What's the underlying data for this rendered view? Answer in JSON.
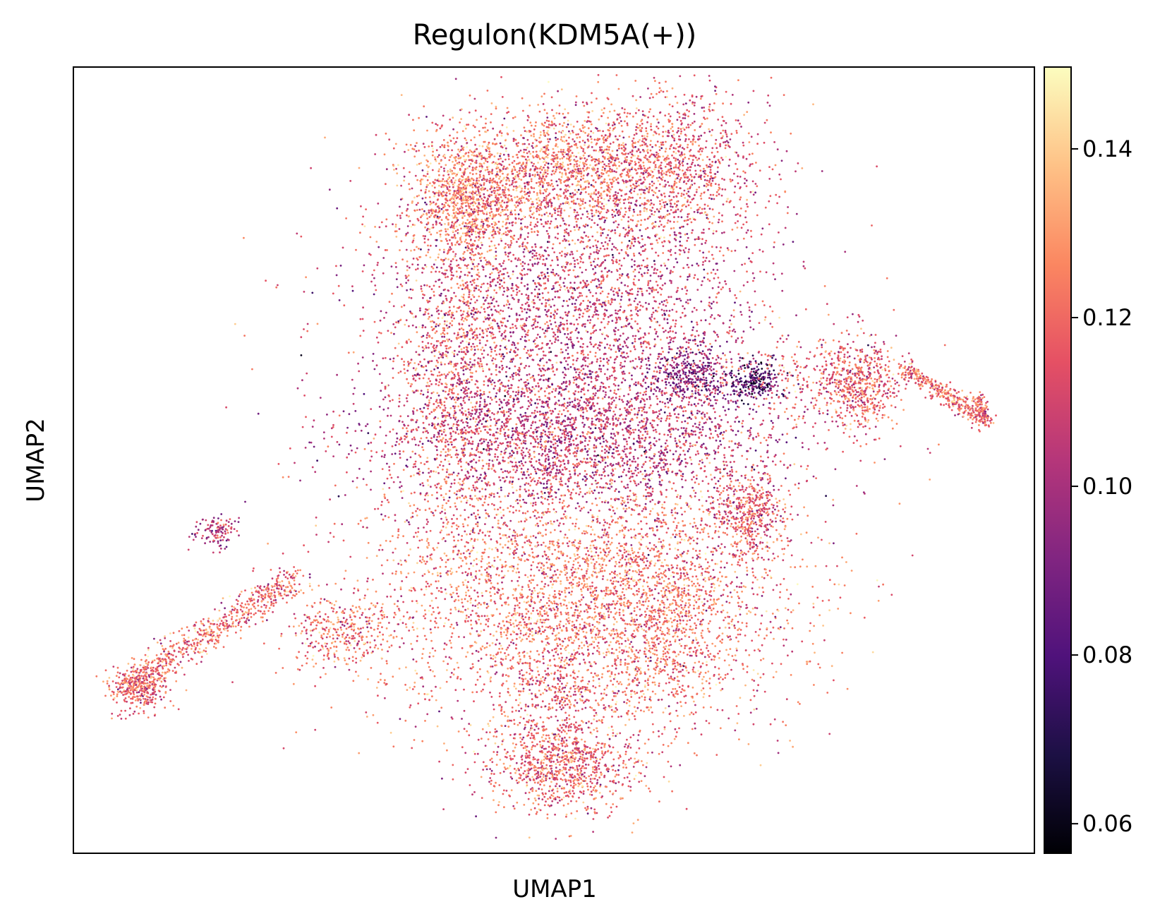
{
  "chart_data": {
    "type": "scatter",
    "title": "Regulon(KDM5A(+))",
    "xlabel": "UMAP1",
    "ylabel": "UMAP2",
    "x_ticks": [],
    "y_ticks": [],
    "grid": false,
    "point_size_note": "tiny markers, ~20000 cells",
    "colormap": {
      "name": "magma",
      "stops": [
        "#000004",
        "#1c1044",
        "#4f127b",
        "#812581",
        "#b5367a",
        "#e55064",
        "#fb8761",
        "#fec287",
        "#fcfdbf"
      ]
    },
    "colorbar": {
      "range": [
        0.0565,
        0.1497
      ],
      "ticks": [
        "0.06",
        "0.08",
        "0.10",
        "0.12",
        "0.14"
      ],
      "tick_values": [
        0.06,
        0.08,
        0.1,
        0.12,
        0.14
      ],
      "placement": "right"
    },
    "x_range": [
      0,
      100
    ],
    "y_range": [
      0,
      100
    ],
    "clusters": [
      {
        "cx": 41,
        "cy": 83,
        "sx": 3,
        "sy": 4,
        "n": 900,
        "mean": 0.125
      },
      {
        "cx": 40,
        "cy": 60,
        "sx": 3,
        "sy": 12,
        "n": 900,
        "mean": 0.122
      },
      {
        "cx": 52,
        "cy": 70,
        "sx": 10,
        "sy": 9,
        "n": 3200,
        "mean": 0.108
      },
      {
        "cx": 51,
        "cy": 87,
        "sx": 7,
        "sy": 4,
        "n": 1500,
        "mean": 0.123
      },
      {
        "cx": 62,
        "cy": 88,
        "sx": 5,
        "sy": 5,
        "n": 900,
        "mean": 0.115
      },
      {
        "cx": 52,
        "cy": 53,
        "sx": 11,
        "sy": 5,
        "n": 2600,
        "mean": 0.105
      },
      {
        "cx": 53,
        "cy": 33,
        "sx": 11,
        "sy": 8,
        "n": 3600,
        "mean": 0.122
      },
      {
        "cx": 51,
        "cy": 11,
        "sx": 4,
        "sy": 3,
        "n": 900,
        "mean": 0.118
      },
      {
        "cx": 50,
        "cy": 20,
        "sx": 3,
        "sy": 5,
        "n": 400,
        "mean": 0.115
      },
      {
        "cx": 62,
        "cy": 29,
        "sx": 3,
        "sy": 6,
        "n": 500,
        "mean": 0.12
      },
      {
        "cx": 64,
        "cy": 61,
        "sx": 2,
        "sy": 2,
        "n": 300,
        "mean": 0.092
      },
      {
        "cx": 71,
        "cy": 60,
        "sx": 1.5,
        "sy": 1.2,
        "n": 250,
        "mean": 0.08
      },
      {
        "cx": 70,
        "cy": 43,
        "sx": 2,
        "sy": 3,
        "n": 500,
        "mean": 0.115
      },
      {
        "cx": 82,
        "cy": 60,
        "sx": 2,
        "sy": 3,
        "n": 500,
        "mean": 0.117
      },
      {
        "cx": 78,
        "cy": 60,
        "sx": 4,
        "sy": 3,
        "n": 250,
        "mean": 0.118
      },
      {
        "cx": 7,
        "cy": 21,
        "sx": 1.5,
        "sy": 1.5,
        "n": 300,
        "mean": 0.117
      },
      {
        "cx": 15,
        "cy": 41,
        "sx": 1.2,
        "sy": 1,
        "n": 120,
        "mean": 0.105
      },
      {
        "cx": 57,
        "cy": 20,
        "sx": 2,
        "sy": 2,
        "n": 60,
        "mean": 0.125
      },
      {
        "cx": 28,
        "cy": 28,
        "sx": 3,
        "sy": 2.5,
        "n": 350,
        "mean": 0.12
      }
    ],
    "arms": [
      {
        "x0": 5,
        "y0": 21,
        "x1": 23,
        "y1": 35,
        "width": 2.2,
        "n": 700,
        "mean": 0.12
      },
      {
        "x0": 86,
        "y0": 62,
        "x1": 95,
        "y1": 55,
        "width": 1.3,
        "n": 350,
        "mean": 0.12
      },
      {
        "x0": 94,
        "y0": 58,
        "x1": 95,
        "y1": 55,
        "width": 1,
        "n": 100,
        "mean": 0.118
      }
    ],
    "scatter_stragglers": {
      "n": 300,
      "mean": 0.118
    }
  }
}
